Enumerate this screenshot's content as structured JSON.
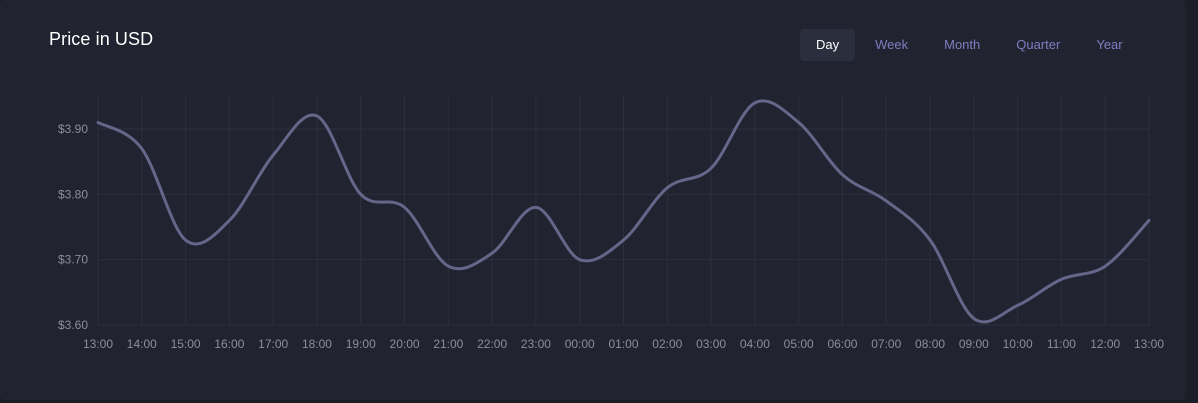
{
  "header": {
    "title": "Price in USD"
  },
  "tabs": [
    {
      "label": "Day",
      "active": true
    },
    {
      "label": "Week",
      "active": false
    },
    {
      "label": "Month",
      "active": false
    },
    {
      "label": "Quarter",
      "active": false
    },
    {
      "label": "Year",
      "active": false
    }
  ],
  "colors": {
    "background": "#212330",
    "line": "#646789",
    "tab_text": "#7b7fc0",
    "grid": "#2c2f3c"
  },
  "chart_data": {
    "type": "line",
    "title": "",
    "xlabel": "",
    "ylabel": "",
    "grid": true,
    "ylim": [
      3.6,
      3.93
    ],
    "x": [
      "13:00",
      "14:00",
      "15:00",
      "16:00",
      "17:00",
      "18:00",
      "19:00",
      "20:00",
      "21:00",
      "22:00",
      "23:00",
      "00:00",
      "01:00",
      "02:00",
      "03:00",
      "04:00",
      "05:00",
      "06:00",
      "07:00",
      "08:00",
      "09:00",
      "10:00",
      "11:00",
      "12:00",
      "13:00"
    ],
    "y_ticks": [
      {
        "value": 3.6,
        "label": "$3.60"
      },
      {
        "value": 3.7,
        "label": "$3.70"
      },
      {
        "value": 3.8,
        "label": "$3.80"
      },
      {
        "value": 3.9,
        "label": "$3.90"
      }
    ],
    "series": [
      {
        "values": [
          3.91,
          3.87,
          3.73,
          3.76,
          3.86,
          3.92,
          3.8,
          3.78,
          3.69,
          3.71,
          3.78,
          3.7,
          3.73,
          3.81,
          3.84,
          3.94,
          3.91,
          3.83,
          3.79,
          3.73,
          3.61,
          3.63,
          3.67,
          3.69,
          3.76
        ]
      }
    ]
  }
}
